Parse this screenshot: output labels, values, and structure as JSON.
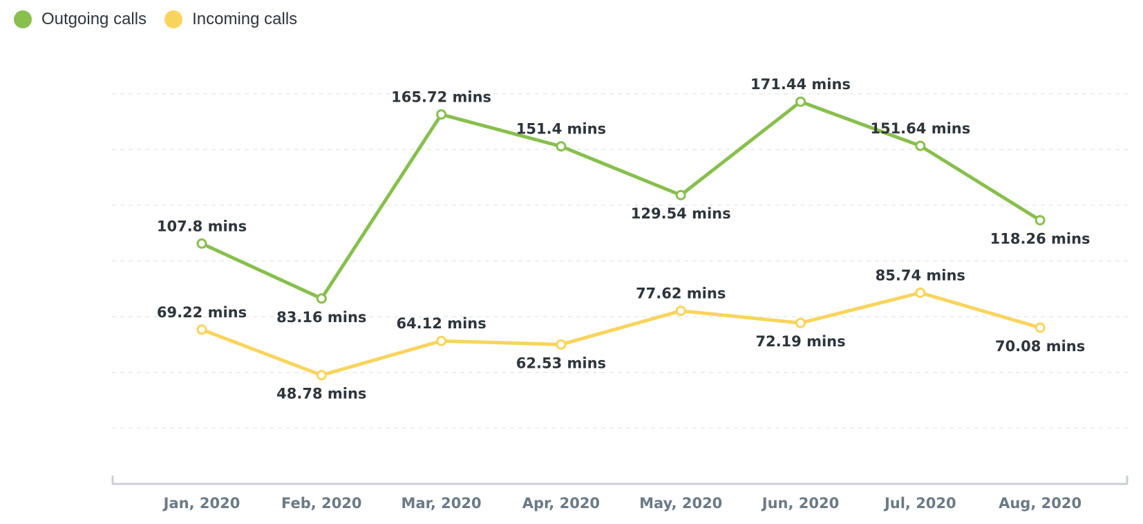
{
  "chart_data": {
    "type": "line",
    "title": "",
    "xlabel": "",
    "ylabel": "",
    "categories": [
      "Jan, 2020",
      "Feb, 2020",
      "Mar, 2020",
      "Apr, 2020",
      "May, 2020",
      "Jun, 2020",
      "Jul, 2020",
      "Aug, 2020"
    ],
    "ylim": [
      0,
      200
    ],
    "grid": true,
    "legend_position": "top-left",
    "value_suffix": " mins",
    "series": [
      {
        "name": "Outgoing calls",
        "color": "#88bf4d",
        "values": [
          107.8,
          83.16,
          165.72,
          151.4,
          129.54,
          171.44,
          151.64,
          118.26
        ],
        "labels": [
          "107.8 mins",
          "83.16 mins",
          "165.72 mins",
          "151.4 mins",
          "129.54 mins",
          "171.44 mins",
          "151.64 mins",
          "118.26 mins"
        ],
        "label_positions": [
          "above",
          "below",
          "above",
          "above",
          "below",
          "above",
          "above",
          "below"
        ]
      },
      {
        "name": "Incoming calls",
        "color": "#f9d45c",
        "values": [
          69.22,
          48.78,
          64.12,
          62.53,
          77.62,
          72.19,
          85.74,
          70.08
        ],
        "labels": [
          "69.22 mins",
          "48.78 mins",
          "64.12 mins",
          "62.53 mins",
          "77.62 mins",
          "72.19 mins",
          "85.74 mins",
          "70.08 mins"
        ],
        "label_positions": [
          "above",
          "below",
          "above",
          "below",
          "above",
          "below",
          "above",
          "below"
        ]
      }
    ]
  }
}
